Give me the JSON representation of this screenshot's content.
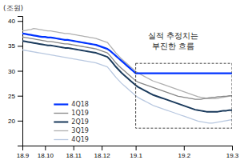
{
  "chart_data": {
    "type": "line",
    "ylabel": "(조원)",
    "annotation": "실적 추정치는\n부진한 흐름",
    "categories": [
      "18.9",
      null,
      null,
      null,
      null,
      null,
      null,
      null,
      "18.10",
      null,
      null,
      null,
      null,
      null,
      null,
      null,
      null,
      null,
      "18.11",
      null,
      null,
      null,
      null,
      null,
      null,
      null,
      null,
      null,
      "18.12",
      null,
      null,
      null,
      null,
      null,
      null,
      null,
      null,
      null,
      null,
      null,
      "19.1",
      null,
      null,
      null,
      null,
      null,
      null,
      null,
      null,
      null,
      null,
      null,
      null,
      null,
      null,
      null,
      null,
      "19.2",
      null,
      null,
      null,
      null,
      null,
      null,
      null,
      null,
      null,
      null,
      null,
      null,
      null,
      null,
      null,
      null,
      "19.3"
    ],
    "ylim": [
      15,
      41
    ],
    "yticks": [
      20,
      25,
      30,
      35,
      40
    ],
    "grid": false,
    "legend": "lower left",
    "series": [
      {
        "name": "4Q18",
        "color": "#0033ff",
        "values": [
          37.5,
          37.4,
          37.3,
          37.2,
          37.1,
          37.0,
          36.9,
          36.8,
          36.8,
          36.7,
          36.7,
          36.6,
          36.5,
          36.4,
          36.3,
          36.2,
          36.2,
          36.1,
          36.0,
          35.9,
          35.8,
          35.7,
          35.6,
          35.5,
          35.4,
          35.3,
          35.2,
          35.0,
          34.8,
          34.6,
          34.4,
          34.0,
          33.5,
          33.0,
          32.5,
          32.0,
          31.5,
          31.0,
          30.5,
          30.0,
          29.5,
          29.5,
          29.5,
          29.5,
          29.5,
          29.5,
          29.5,
          29.5,
          29.5,
          29.5,
          29.5,
          29.5,
          29.5,
          29.5,
          29.5,
          29.5,
          29.5,
          29.5,
          29.5,
          29.5,
          29.5,
          29.5,
          29.5,
          29.5,
          29.5,
          29.5,
          29.5,
          29.5,
          29.5,
          29.5,
          29.5,
          29.5,
          29.5,
          29.5,
          29.5
        ]
      },
      {
        "name": "1Q19",
        "color": "#888888",
        "values": [
          36.8,
          36.7,
          36.6,
          36.5,
          36.4,
          36.3,
          36.2,
          36.1,
          36.0,
          35.9,
          35.9,
          35.8,
          35.7,
          35.6,
          35.5,
          35.4,
          35.4,
          35.3,
          35.2,
          35.1,
          35.0,
          34.9,
          34.8,
          34.7,
          34.6,
          34.5,
          34.4,
          34.2,
          34.0,
          33.8,
          33.6,
          33.0,
          32.3,
          31.6,
          31.0,
          30.5,
          30.0,
          29.5,
          29.0,
          28.5,
          28.0,
          27.7,
          27.5,
          27.3,
          27.1,
          26.9,
          26.7,
          26.5,
          26.3,
          26.1,
          25.9,
          25.7,
          25.5,
          25.3,
          25.1,
          24.9,
          24.8,
          24.7,
          24.6,
          24.5,
          24.4,
          24.3,
          24.3,
          24.3,
          24.4,
          24.5,
          24.6,
          24.7,
          24.7,
          24.8,
          24.8,
          24.9,
          24.9,
          25.0,
          25.0
        ]
      },
      {
        "name": "2Q19",
        "color": "#1a3a5c",
        "values": [
          36.0,
          35.9,
          35.8,
          35.7,
          35.6,
          35.5,
          35.4,
          35.3,
          35.2,
          35.1,
          35.1,
          35.0,
          34.9,
          34.8,
          34.7,
          34.6,
          34.6,
          34.5,
          34.4,
          34.3,
          34.2,
          34.1,
          34.0,
          33.9,
          33.8,
          33.7,
          33.6,
          33.4,
          33.2,
          33.0,
          32.8,
          32.2,
          31.5,
          30.8,
          30.2,
          29.6,
          29.1,
          28.6,
          28.1,
          27.6,
          27.1,
          26.7,
          26.4,
          26.1,
          25.8,
          25.5,
          25.2,
          25.0,
          24.8,
          24.6,
          24.4,
          24.2,
          24.0,
          23.8,
          23.6,
          23.4,
          23.2,
          23.0,
          22.8,
          22.6,
          22.4,
          22.2,
          22.1,
          22.0,
          21.9,
          21.8,
          21.8,
          21.8,
          21.8,
          21.8,
          21.9,
          22.0,
          22.0,
          22.1,
          22.1
        ]
      },
      {
        "name": "3Q19",
        "color": "#b0b0b0",
        "values": [
          38.0,
          38.1,
          38.2,
          38.3,
          38.5,
          38.4,
          38.3,
          38.2,
          38.1,
          38.0,
          38.0,
          37.9,
          37.8,
          37.7,
          37.6,
          37.5,
          37.5,
          37.4,
          37.3,
          37.2,
          37.1,
          37.0,
          36.9,
          36.8,
          36.7,
          36.6,
          36.5,
          36.3,
          36.1,
          35.9,
          35.7,
          35.0,
          34.3,
          33.6,
          33.0,
          32.4,
          31.9,
          31.4,
          30.9,
          30.4,
          29.9,
          29.5,
          29.2,
          28.9,
          28.6,
          28.3,
          28.0,
          27.8,
          27.6,
          27.4,
          27.2,
          27.0,
          26.8,
          26.6,
          26.4,
          26.2,
          26.0,
          25.8,
          25.6,
          25.4,
          25.2,
          25.0,
          24.8,
          24.7,
          24.6,
          24.5,
          24.4,
          24.4,
          24.4,
          24.5,
          24.6,
          24.7,
          24.8,
          24.9,
          25.0
        ]
      },
      {
        "name": "4Q19",
        "color": "#b8c8e0",
        "values": [
          34.2,
          34.1,
          34.0,
          33.9,
          33.8,
          33.7,
          33.6,
          33.5,
          33.4,
          33.3,
          33.2,
          33.1,
          33.0,
          32.9,
          32.8,
          32.7,
          32.6,
          32.5,
          32.4,
          32.3,
          32.2,
          32.1,
          32.0,
          31.9,
          31.8,
          31.7,
          31.6,
          31.4,
          31.2,
          31.0,
          30.8,
          30.1,
          29.4,
          28.7,
          28.1,
          27.5,
          27.0,
          26.5,
          26.0,
          25.5,
          25.0,
          24.6,
          24.3,
          24.0,
          23.7,
          23.4,
          23.1,
          22.9,
          22.7,
          22.5,
          22.3,
          22.1,
          21.9,
          21.7,
          21.5,
          21.3,
          21.1,
          20.9,
          20.7,
          20.5,
          20.3,
          20.1,
          19.9,
          19.8,
          19.7,
          19.6,
          19.5,
          19.5,
          19.6,
          19.7,
          19.8,
          19.9,
          20.0,
          20.1,
          20.2
        ]
      }
    ],
    "highlight_box": {
      "from": 40,
      "to": 74,
      "y_bottom": 18.5,
      "y_top": 31.5
    }
  }
}
